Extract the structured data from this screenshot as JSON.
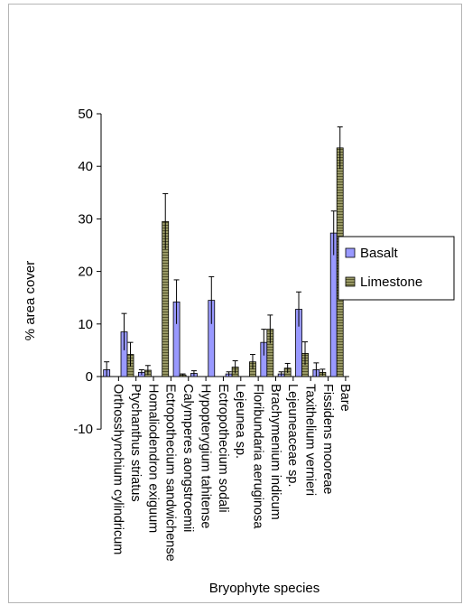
{
  "chart_data": {
    "type": "bar",
    "title": "",
    "xlabel": "Bryophyte species",
    "ylabel": "% area cover",
    "ylim": [
      -10,
      50
    ],
    "yticks": [
      -10,
      0,
      10,
      20,
      30,
      40,
      50
    ],
    "grid": false,
    "legend_position": "right",
    "categories": [
      "Orthosshynchium cylindricum",
      "Ptychanthus striatus",
      "Homaliodendron exiguum",
      "Ectropothecium sandwichense",
      "Calymperes aongstroemii",
      "Hypopterygium tahitense",
      "Ectropothecium sodali",
      "Lejeunea sp.",
      "Floribundaria aeruginosa",
      "Brachymenium indicum",
      "Lejeuneaceae sp.",
      "Taxithelium vernieri",
      "Fissidens mooreae",
      "Bare"
    ],
    "series": [
      {
        "name": "Basalt",
        "color": "#9999ff",
        "values": [
          1.3,
          8.5,
          0.8,
          0,
          14.2,
          0.6,
          14.5,
          0.5,
          0,
          6.5,
          0.5,
          12.8,
          1.3,
          27.3
        ],
        "errors": [
          1.5,
          3.5,
          0.5,
          0,
          4.2,
          0.5,
          4.5,
          0.4,
          0,
          2.5,
          0.4,
          3.3,
          1.3,
          4.2
        ]
      },
      {
        "name": "Limestone",
        "color": "#999966",
        "values": [
          0,
          4.2,
          1.2,
          29.5,
          0.3,
          0,
          0,
          1.8,
          2.8,
          9.0,
          1.6,
          4.4,
          0.8,
          43.5
        ],
        "errors": [
          0,
          2.3,
          0.9,
          5.3,
          0.2,
          0,
          0,
          1.2,
          1.4,
          2.7,
          0.9,
          2.2,
          0.6,
          4.0
        ]
      }
    ]
  }
}
